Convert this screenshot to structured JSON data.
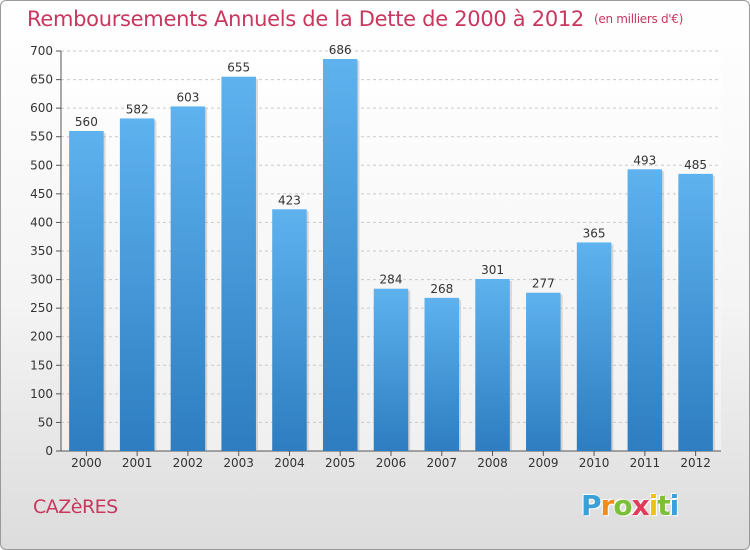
{
  "chart_data": {
    "type": "bar",
    "title": "Remboursements Annuels de la Dette de 2000 à 2012",
    "subtitle": "(en milliers d'€)",
    "categories": [
      "2000",
      "2001",
      "2002",
      "2003",
      "2004",
      "2005",
      "2006",
      "2007",
      "2008",
      "2009",
      "2010",
      "2011",
      "2012"
    ],
    "values": [
      560,
      582,
      603,
      655,
      423,
      686,
      284,
      268,
      301,
      277,
      365,
      493,
      485
    ],
    "ylim": [
      0,
      700
    ],
    "yticks": [
      0,
      50,
      100,
      150,
      200,
      250,
      300,
      350,
      400,
      450,
      500,
      550,
      600,
      650,
      700
    ],
    "grid": true,
    "bar_color": "#4f9fdd"
  },
  "commune": "CAZèRES",
  "logo": {
    "letters": [
      "P",
      "r",
      "o",
      "x",
      "i",
      "t",
      "i"
    ],
    "colors": [
      "#3aa0d8",
      "#f08c1e",
      "#7bbf3a",
      "#e23b5a",
      "#f3c018",
      "#7bbf3a",
      "#3aa0d8"
    ]
  }
}
